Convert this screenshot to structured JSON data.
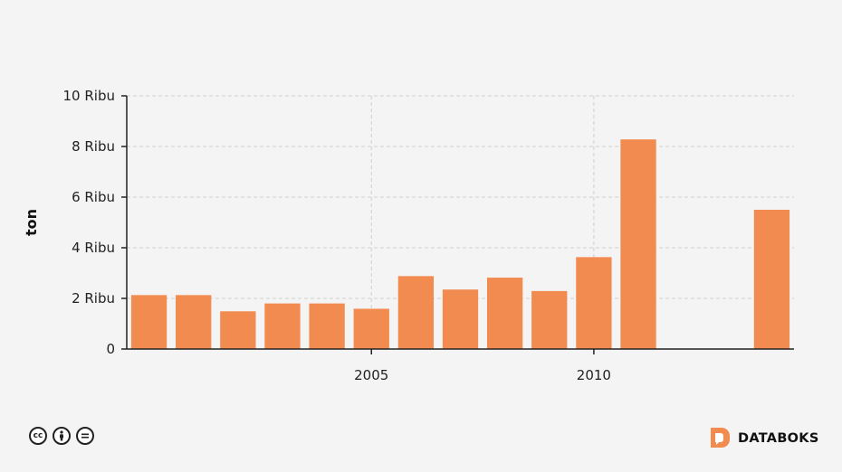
{
  "chart_data": {
    "type": "bar",
    "x": [
      2000,
      2001,
      2002,
      2003,
      2004,
      2005,
      2006,
      2007,
      2008,
      2009,
      2010,
      2011,
      2012,
      2013,
      2014
    ],
    "values": [
      2130,
      2130,
      1490,
      1800,
      1800,
      1590,
      2880,
      2350,
      2820,
      2290,
      3630,
      8280,
      0,
      0,
      5500
    ],
    "ylabel": "ton",
    "ylim": [
      0,
      10000
    ],
    "yticks": [
      0,
      2000,
      4000,
      6000,
      8000,
      10000
    ],
    "ytick_labels": [
      "0",
      "2 Ribu",
      "4 Ribu",
      "6 Ribu",
      "8 Ribu",
      "10 Ribu"
    ],
    "xticks": [
      2005,
      2010
    ],
    "xtick_labels": [
      "2005",
      "2010"
    ],
    "grid": true,
    "bar_color": "#f28b4f"
  },
  "footer": {
    "license_icons": [
      "cc-icon",
      "by-icon",
      "nd-icon"
    ],
    "brand": "DATABOKS",
    "brand_color": "#f28b4f"
  }
}
